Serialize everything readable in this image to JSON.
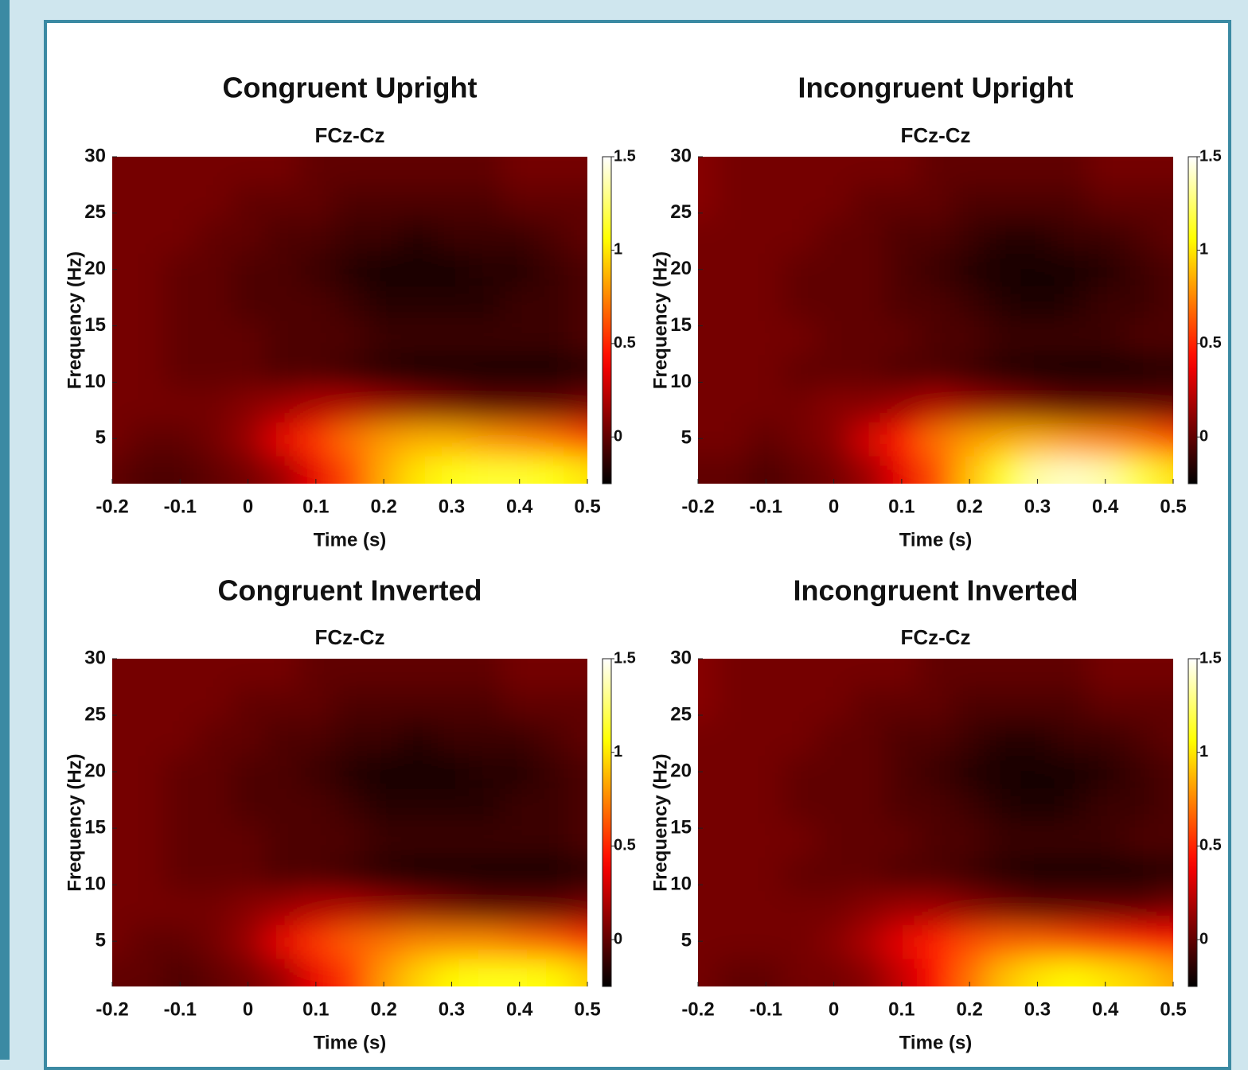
{
  "chart_data": [
    {
      "type": "heatmap",
      "title": "Congruent Upright",
      "subtitle": "FCz-Cz",
      "x_label": "Time (s)",
      "y_label": "Frequency (Hz)",
      "colormap": "hot",
      "x": [
        -0.2,
        -0.15,
        -0.1,
        -0.05,
        0,
        0.05,
        0.1,
        0.15,
        0.2,
        0.25,
        0.3,
        0.35,
        0.4,
        0.45,
        0.5
      ],
      "y": [
        2,
        5,
        8,
        11,
        14,
        17,
        20,
        23,
        26,
        29
      ],
      "z": [
        [
          0.0,
          -0.05,
          -0.05,
          0.0,
          0.05,
          0.15,
          0.35,
          0.6,
          0.85,
          1.0,
          1.1,
          1.15,
          1.15,
          1.1,
          1.0
        ],
        [
          0.05,
          0.0,
          0.0,
          0.05,
          0.15,
          0.35,
          0.55,
          0.7,
          0.8,
          0.85,
          0.85,
          0.8,
          0.75,
          0.7,
          0.6
        ],
        [
          0.05,
          0.05,
          0.05,
          0.05,
          0.1,
          0.15,
          0.2,
          0.2,
          0.15,
          0.1,
          0.05,
          0.0,
          0.0,
          0.0,
          0.05
        ],
        [
          0.05,
          0.05,
          0.0,
          0.0,
          0.0,
          -0.05,
          -0.05,
          -0.1,
          -0.15,
          -0.2,
          -0.2,
          -0.2,
          -0.2,
          -0.2,
          -0.15
        ],
        [
          0.05,
          0.05,
          0.0,
          0.0,
          0.0,
          -0.05,
          -0.05,
          -0.05,
          -0.1,
          -0.1,
          -0.1,
          -0.1,
          -0.1,
          -0.1,
          -0.05
        ],
        [
          0.05,
          0.05,
          0.0,
          0.0,
          -0.05,
          -0.05,
          -0.05,
          -0.1,
          -0.15,
          -0.15,
          -0.15,
          -0.15,
          -0.1,
          -0.1,
          -0.05
        ],
        [
          0.05,
          0.05,
          0.0,
          0.0,
          -0.05,
          -0.05,
          -0.1,
          -0.15,
          -0.2,
          -0.2,
          -0.2,
          -0.15,
          -0.15,
          -0.1,
          -0.05
        ],
        [
          0.05,
          0.05,
          0.05,
          0.0,
          0.0,
          -0.05,
          -0.05,
          -0.1,
          -0.1,
          -0.15,
          -0.1,
          -0.1,
          -0.1,
          -0.05,
          0.0
        ],
        [
          0.05,
          0.05,
          0.05,
          0.05,
          0.0,
          0.0,
          0.0,
          -0.05,
          -0.05,
          -0.05,
          -0.05,
          -0.05,
          0.0,
          0.0,
          0.0
        ],
        [
          0.05,
          0.05,
          0.05,
          0.05,
          0.05,
          0.05,
          0.0,
          0.0,
          0.0,
          0.0,
          0.0,
          0.0,
          0.05,
          0.05,
          0.05
        ]
      ],
      "xlim": [
        -0.2,
        0.5
      ],
      "ylim": [
        1,
        30
      ],
      "xticks": [
        -0.2,
        -0.1,
        0,
        0.1,
        0.2,
        0.3,
        0.4,
        0.5
      ],
      "yticks": [
        5,
        10,
        15,
        20,
        25,
        30
      ],
      "clim": [
        -0.25,
        1.5
      ],
      "cticks": [
        0,
        0.5,
        1,
        1.5
      ]
    },
    {
      "type": "heatmap",
      "title": "Incongruent Upright",
      "subtitle": "FCz-Cz",
      "x_label": "Time (s)",
      "y_label": "Frequency (Hz)",
      "colormap": "hot",
      "x": [
        -0.2,
        -0.15,
        -0.1,
        -0.05,
        0,
        0.05,
        0.1,
        0.15,
        0.2,
        0.25,
        0.3,
        0.35,
        0.4,
        0.45,
        0.5
      ],
      "y": [
        2,
        5,
        8,
        11,
        14,
        17,
        20,
        23,
        26,
        29
      ],
      "z": [
        [
          0.0,
          0.0,
          -0.05,
          0.0,
          0.05,
          0.15,
          0.35,
          0.6,
          0.9,
          1.15,
          1.35,
          1.4,
          1.35,
          1.2,
          1.0
        ],
        [
          0.05,
          0.05,
          0.0,
          0.05,
          0.1,
          0.3,
          0.5,
          0.7,
          0.8,
          0.85,
          0.85,
          0.8,
          0.75,
          0.7,
          0.6
        ],
        [
          0.05,
          0.05,
          0.05,
          0.05,
          0.1,
          0.1,
          0.15,
          0.2,
          0.15,
          0.1,
          0.05,
          0.0,
          0.0,
          0.0,
          0.0
        ],
        [
          0.05,
          0.05,
          0.05,
          0.0,
          0.0,
          0.0,
          -0.05,
          -0.05,
          -0.1,
          -0.15,
          -0.2,
          -0.2,
          -0.2,
          -0.2,
          -0.15
        ],
        [
          0.05,
          0.05,
          0.05,
          0.05,
          0.0,
          0.0,
          0.0,
          -0.05,
          -0.05,
          -0.1,
          -0.1,
          -0.1,
          -0.1,
          -0.05,
          -0.05
        ],
        [
          0.05,
          0.05,
          0.05,
          0.0,
          0.0,
          0.0,
          -0.05,
          -0.05,
          -0.1,
          -0.15,
          -0.2,
          -0.15,
          -0.1,
          -0.1,
          -0.05
        ],
        [
          0.05,
          0.05,
          0.05,
          0.0,
          0.0,
          0.0,
          -0.05,
          -0.1,
          -0.15,
          -0.2,
          -0.2,
          -0.2,
          -0.15,
          -0.1,
          -0.05
        ],
        [
          0.05,
          0.05,
          0.05,
          0.05,
          0.0,
          0.0,
          -0.05,
          -0.05,
          -0.1,
          -0.15,
          -0.15,
          -0.1,
          -0.1,
          -0.05,
          0.0
        ],
        [
          0.1,
          0.05,
          0.05,
          0.05,
          0.05,
          0.0,
          0.0,
          0.0,
          -0.05,
          -0.05,
          -0.05,
          -0.05,
          0.0,
          0.0,
          0.0
        ],
        [
          0.1,
          0.05,
          0.05,
          0.05,
          0.05,
          0.05,
          0.05,
          0.0,
          0.0,
          0.0,
          0.0,
          0.0,
          0.05,
          0.05,
          0.05
        ]
      ],
      "xlim": [
        -0.2,
        0.5
      ],
      "ylim": [
        1,
        30
      ],
      "xticks": [
        -0.2,
        -0.1,
        0,
        0.1,
        0.2,
        0.3,
        0.4,
        0.5
      ],
      "yticks": [
        5,
        10,
        15,
        20,
        25,
        30
      ],
      "clim": [
        -0.25,
        1.5
      ],
      "cticks": [
        0,
        0.5,
        1,
        1.5
      ]
    },
    {
      "type": "heatmap",
      "title": "Congruent Inverted",
      "subtitle": "FCz-Cz",
      "x_label": "Time (s)",
      "y_label": "Frequency (Hz)",
      "colormap": "hot",
      "x": [
        -0.2,
        -0.15,
        -0.1,
        -0.05,
        0,
        0.05,
        0.1,
        0.15,
        0.2,
        0.25,
        0.3,
        0.35,
        0.4,
        0.45,
        0.5
      ],
      "y": [
        2,
        5,
        8,
        11,
        14,
        17,
        20,
        23,
        26,
        29
      ],
      "z": [
        [
          0.0,
          0.0,
          -0.05,
          0.0,
          0.05,
          0.15,
          0.35,
          0.55,
          0.8,
          0.95,
          1.05,
          1.1,
          1.1,
          1.05,
          0.95
        ],
        [
          0.05,
          0.0,
          0.0,
          0.05,
          0.15,
          0.35,
          0.55,
          0.65,
          0.7,
          0.75,
          0.75,
          0.75,
          0.7,
          0.65,
          0.55
        ],
        [
          0.05,
          0.05,
          0.05,
          0.05,
          0.1,
          0.15,
          0.2,
          0.2,
          0.15,
          0.1,
          0.05,
          0.0,
          0.0,
          0.0,
          0.05
        ],
        [
          0.05,
          0.05,
          0.0,
          0.0,
          0.0,
          -0.05,
          -0.05,
          -0.1,
          -0.15,
          -0.2,
          -0.2,
          -0.2,
          -0.2,
          -0.2,
          -0.15
        ],
        [
          0.05,
          0.05,
          0.0,
          0.0,
          0.0,
          -0.05,
          -0.05,
          -0.05,
          -0.1,
          -0.1,
          -0.1,
          -0.1,
          -0.1,
          -0.1,
          -0.05
        ],
        [
          0.05,
          0.05,
          0.0,
          0.0,
          -0.05,
          -0.05,
          -0.05,
          -0.1,
          -0.15,
          -0.15,
          -0.15,
          -0.15,
          -0.1,
          -0.1,
          -0.05
        ],
        [
          0.05,
          0.05,
          0.0,
          0.0,
          -0.05,
          -0.05,
          -0.1,
          -0.15,
          -0.2,
          -0.2,
          -0.2,
          -0.15,
          -0.15,
          -0.1,
          -0.05
        ],
        [
          0.05,
          0.05,
          0.05,
          0.0,
          0.0,
          -0.05,
          -0.05,
          -0.1,
          -0.1,
          -0.15,
          -0.1,
          -0.1,
          -0.1,
          -0.05,
          0.0
        ],
        [
          0.05,
          0.05,
          0.05,
          0.05,
          0.0,
          0.0,
          0.0,
          -0.05,
          -0.05,
          -0.05,
          -0.05,
          -0.05,
          0.0,
          0.0,
          0.0
        ],
        [
          0.05,
          0.05,
          0.05,
          0.05,
          0.05,
          0.05,
          0.0,
          0.0,
          0.0,
          0.0,
          0.0,
          0.0,
          0.05,
          0.05,
          0.05
        ]
      ],
      "xlim": [
        -0.2,
        0.5
      ],
      "ylim": [
        1,
        30
      ],
      "xticks": [
        -0.2,
        -0.1,
        0,
        0.1,
        0.2,
        0.3,
        0.4,
        0.5
      ],
      "yticks": [
        5,
        10,
        15,
        20,
        25,
        30
      ],
      "clim": [
        -0.25,
        1.5
      ],
      "cticks": [
        0,
        0.5,
        1,
        1.5
      ]
    },
    {
      "type": "heatmap",
      "title": "Incongruent Inverted",
      "subtitle": "FCz-Cz",
      "x_label": "Time (s)",
      "y_label": "Frequency (Hz)",
      "colormap": "hot",
      "x": [
        -0.2,
        -0.15,
        -0.1,
        -0.05,
        0,
        0.05,
        0.1,
        0.15,
        0.2,
        0.25,
        0.3,
        0.35,
        0.4,
        0.45,
        0.5
      ],
      "y": [
        2,
        5,
        8,
        11,
        14,
        17,
        20,
        23,
        26,
        29
      ],
      "z": [
        [
          0.05,
          0.0,
          0.0,
          0.05,
          0.05,
          0.1,
          0.25,
          0.45,
          0.7,
          0.9,
          1.0,
          1.05,
          1.0,
          0.95,
          0.85
        ],
        [
          0.05,
          0.05,
          0.05,
          0.05,
          0.1,
          0.2,
          0.35,
          0.5,
          0.6,
          0.65,
          0.65,
          0.6,
          0.55,
          0.5,
          0.45
        ],
        [
          0.05,
          0.05,
          0.05,
          0.05,
          0.05,
          0.1,
          0.15,
          0.15,
          0.1,
          0.05,
          0.0,
          0.0,
          0.0,
          0.0,
          0.05
        ],
        [
          0.05,
          0.05,
          0.05,
          0.0,
          0.0,
          0.0,
          -0.05,
          -0.05,
          -0.1,
          -0.15,
          -0.2,
          -0.2,
          -0.2,
          -0.2,
          -0.15
        ],
        [
          0.05,
          0.05,
          0.05,
          0.05,
          0.0,
          0.0,
          0.0,
          -0.05,
          -0.05,
          -0.1,
          -0.1,
          -0.1,
          -0.1,
          -0.05,
          -0.05
        ],
        [
          0.05,
          0.05,
          0.05,
          0.0,
          0.0,
          0.0,
          -0.05,
          -0.05,
          -0.1,
          -0.15,
          -0.2,
          -0.15,
          -0.1,
          -0.1,
          -0.05
        ],
        [
          0.05,
          0.05,
          0.05,
          0.0,
          0.0,
          0.0,
          -0.05,
          -0.1,
          -0.15,
          -0.2,
          -0.2,
          -0.2,
          -0.15,
          -0.1,
          -0.05
        ],
        [
          0.05,
          0.05,
          0.05,
          0.05,
          0.0,
          0.0,
          -0.05,
          -0.05,
          -0.1,
          -0.15,
          -0.15,
          -0.1,
          -0.1,
          -0.05,
          0.0
        ],
        [
          0.1,
          0.05,
          0.05,
          0.05,
          0.05,
          0.0,
          0.0,
          0.0,
          -0.05,
          -0.05,
          -0.05,
          -0.05,
          0.0,
          0.0,
          0.0
        ],
        [
          0.1,
          0.05,
          0.05,
          0.05,
          0.05,
          0.05,
          0.05,
          0.0,
          0.0,
          0.0,
          0.0,
          0.0,
          0.05,
          0.05,
          0.05
        ]
      ],
      "xlim": [
        -0.2,
        0.5
      ],
      "ylim": [
        1,
        30
      ],
      "xticks": [
        -0.2,
        -0.1,
        0,
        0.1,
        0.2,
        0.3,
        0.4,
        0.5
      ],
      "yticks": [
        5,
        10,
        15,
        20,
        25,
        30
      ],
      "clim": [
        -0.25,
        1.5
      ],
      "cticks": [
        0,
        0.5,
        1,
        1.5
      ]
    }
  ]
}
